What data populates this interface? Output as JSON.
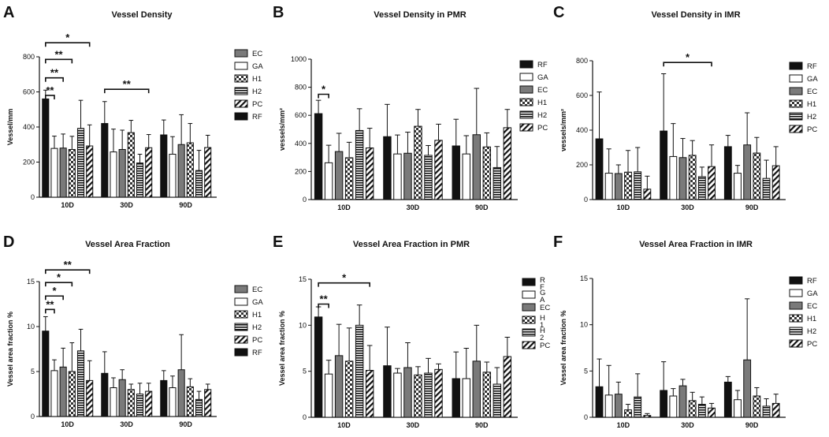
{
  "colors": {
    "ink": "#111111",
    "gray": "#7a7a7a",
    "white": "#ffffff"
  },
  "chart_data": [
    {
      "letter": "A",
      "title": "Vessel Density",
      "type": "bar",
      "ylabel": "Vessel/mm",
      "ylim": [
        0,
        800
      ],
      "yticks": [
        0,
        200,
        400,
        600,
        800
      ],
      "categories": [
        "10D",
        "30D",
        "90D"
      ],
      "series": [
        {
          "name": "RF",
          "fill": "black",
          "values": [
            560,
            420,
            355
          ],
          "errors": [
            50,
            125,
            85
          ]
        },
        {
          "name": "GA",
          "fill": "white",
          "values": [
            278,
            258,
            245
          ],
          "errors": [
            70,
            130,
            100
          ]
        },
        {
          "name": "EC",
          "fill": "gray",
          "values": [
            280,
            272,
            300
          ],
          "errors": [
            80,
            110,
            170
          ]
        },
        {
          "name": "H1",
          "fill": "check",
          "values": [
            272,
            368,
            310
          ],
          "errors": [
            75,
            70,
            110
          ]
        },
        {
          "name": "H2",
          "fill": "hstripe",
          "values": [
            392,
            195,
            152
          ],
          "errors": [
            160,
            50,
            115
          ]
        },
        {
          "name": "PC",
          "fill": "diag",
          "values": [
            292,
            282,
            283
          ],
          "errors": [
            120,
            75,
            70
          ]
        }
      ],
      "legend": [
        {
          "label": "EC",
          "fill": "gray"
        },
        {
          "label": "GA",
          "fill": "white"
        },
        {
          "label": "H1",
          "fill": "check"
        },
        {
          "label": "H2",
          "fill": "hstripe"
        },
        {
          "label": "PC",
          "fill": "diag"
        },
        {
          "label": "RF",
          "fill": "black"
        }
      ],
      "sig": [
        {
          "cat": 0,
          "a": 0,
          "b": 5,
          "level": 880,
          "label": "*"
        },
        {
          "cat": 0,
          "a": 0,
          "b": 3,
          "level": 785,
          "label": "**"
        },
        {
          "cat": 0,
          "a": 0,
          "b": 2,
          "level": 680,
          "label": "**"
        },
        {
          "cat": 0,
          "a": 0,
          "b": 1,
          "level": 580,
          "label": "**"
        },
        {
          "cat": 1,
          "a": 0,
          "b": 5,
          "level": 615,
          "label": "**"
        }
      ]
    },
    {
      "letter": "B",
      "title": "Vessel Density in PMR",
      "type": "bar",
      "ylabel": "vessels/mm²",
      "ylim": [
        0,
        1000
      ],
      "yticks": [
        0,
        200,
        400,
        600,
        800,
        1000
      ],
      "categories": [
        "10D",
        "30D",
        "90D"
      ],
      "series": [
        {
          "name": "RF",
          "fill": "black",
          "values": [
            612,
            448,
            382
          ],
          "errors": [
            95,
            230,
            190
          ]
        },
        {
          "name": "GA",
          "fill": "white",
          "values": [
            262,
            325,
            325
          ],
          "errors": [
            125,
            135,
            130
          ]
        },
        {
          "name": "EC",
          "fill": "gray",
          "values": [
            342,
            330,
            462
          ],
          "errors": [
            130,
            150,
            330
          ]
        },
        {
          "name": "H1",
          "fill": "check",
          "values": [
            298,
            522,
            375
          ],
          "errors": [
            110,
            120,
            100
          ]
        },
        {
          "name": "H2",
          "fill": "hstripe",
          "values": [
            492,
            315,
            228
          ],
          "errors": [
            155,
            70,
            150
          ]
        },
        {
          "name": "PC",
          "fill": "diag",
          "values": [
            368,
            422,
            512
          ],
          "errors": [
            140,
            115,
            130
          ]
        }
      ],
      "legend": [
        {
          "label": "RF",
          "fill": "black"
        },
        {
          "label": "GA",
          "fill": "white"
        },
        {
          "label": "EC",
          "fill": "gray"
        },
        {
          "label": "H1",
          "fill": "check"
        },
        {
          "label": "H2",
          "fill": "hstripe"
        },
        {
          "label": "PC",
          "fill": "diag"
        }
      ],
      "sig": [
        {
          "cat": 0,
          "a": 0,
          "b": 1,
          "level": 750,
          "label": "*"
        }
      ]
    },
    {
      "letter": "C",
      "title": "Vessel Density in IMR",
      "type": "bar",
      "ylabel": "vessels/mm²",
      "ylim": [
        0,
        800
      ],
      "yticks": [
        0,
        200,
        400,
        600,
        800
      ],
      "categories": [
        "10D",
        "30D",
        "90D"
      ],
      "series": [
        {
          "name": "RF",
          "fill": "black",
          "values": [
            350,
            395,
            305
          ],
          "errors": [
            270,
            330,
            65
          ]
        },
        {
          "name": "GA",
          "fill": "white",
          "values": [
            152,
            248,
            152
          ],
          "errors": [
            140,
            190,
            45
          ]
        },
        {
          "name": "EC",
          "fill": "gray",
          "values": [
            150,
            242,
            315
          ],
          "errors": [
            50,
            110,
            185
          ]
        },
        {
          "name": "H1",
          "fill": "check",
          "values": [
            158,
            255,
            268
          ],
          "errors": [
            125,
            85,
            90
          ]
        },
        {
          "name": "H2",
          "fill": "hstripe",
          "values": [
            160,
            132,
            122
          ],
          "errors": [
            140,
            55,
            105
          ]
        },
        {
          "name": "PC",
          "fill": "diag",
          "values": [
            60,
            190,
            195
          ],
          "errors": [
            75,
            125,
            110
          ]
        }
      ],
      "legend": [
        {
          "label": "RF",
          "fill": "black"
        },
        {
          "label": "GA",
          "fill": "white"
        },
        {
          "label": "EC",
          "fill": "gray"
        },
        {
          "label": "H1",
          "fill": "check"
        },
        {
          "label": "H2",
          "fill": "hstripe"
        },
        {
          "label": "PC",
          "fill": "diag"
        }
      ],
      "sig": [
        {
          "cat": 1,
          "a": 0,
          "b": 5,
          "level": 790,
          "label": "*"
        }
      ]
    },
    {
      "letter": "D",
      "title": "Vessel Area Fraction",
      "type": "bar",
      "ylabel": "Vessel area fraction %",
      "ylim": [
        0,
        15
      ],
      "yticks": [
        0,
        5,
        10,
        15
      ],
      "categories": [
        "10D",
        "30D",
        "90D"
      ],
      "series": [
        {
          "name": "RF",
          "fill": "black",
          "values": [
            9.5,
            4.8,
            4.0
          ],
          "errors": [
            1.6,
            2.4,
            1.1
          ]
        },
        {
          "name": "GA",
          "fill": "white",
          "values": [
            5.1,
            3.2,
            3.2
          ],
          "errors": [
            1.2,
            1.1,
            1.3
          ]
        },
        {
          "name": "EC",
          "fill": "gray",
          "values": [
            5.5,
            4.1,
            5.2
          ],
          "errors": [
            2.1,
            1.1,
            3.9
          ]
        },
        {
          "name": "H1",
          "fill": "check",
          "values": [
            5.0,
            3.0,
            3.3
          ],
          "errors": [
            3.2,
            0.6,
            0.9
          ]
        },
        {
          "name": "H2",
          "fill": "hstripe",
          "values": [
            7.3,
            2.5,
            1.9
          ],
          "errors": [
            2.4,
            1.2,
            0.9
          ]
        },
        {
          "name": "PC",
          "fill": "diag",
          "values": [
            4.0,
            2.8,
            3.0
          ],
          "errors": [
            2.2,
            0.9,
            0.6
          ]
        }
      ],
      "legend": [
        {
          "label": "EC",
          "fill": "gray"
        },
        {
          "label": "GA",
          "fill": "white"
        },
        {
          "label": "H1",
          "fill": "check"
        },
        {
          "label": "H2",
          "fill": "hstripe"
        },
        {
          "label": "PC",
          "fill": "diag"
        },
        {
          "label": "RF",
          "fill": "black"
        }
      ],
      "sig": [
        {
          "cat": 0,
          "a": 0,
          "b": 5,
          "level": 16.3,
          "label": "**"
        },
        {
          "cat": 0,
          "a": 0,
          "b": 3,
          "level": 14.9,
          "label": "*"
        },
        {
          "cat": 0,
          "a": 0,
          "b": 2,
          "level": 13.4,
          "label": "*"
        },
        {
          "cat": 0,
          "a": 0,
          "b": 1,
          "level": 11.9,
          "label": "**"
        }
      ]
    },
    {
      "letter": "E",
      "title": "Vessel Area Fraction in PMR",
      "type": "bar",
      "ylabel": "Vessel area fraction %",
      "ylim": [
        0,
        15
      ],
      "yticks": [
        0,
        5,
        10,
        15
      ],
      "categories": [
        "10D",
        "30D",
        "90D"
      ],
      "series": [
        {
          "name": "RF",
          "fill": "black",
          "values": [
            10.9,
            5.6,
            4.2
          ],
          "errors": [
            1.1,
            4.2,
            2.9
          ]
        },
        {
          "name": "GA",
          "fill": "white",
          "values": [
            4.7,
            4.8,
            4.2
          ],
          "errors": [
            1.5,
            0.5,
            3.3
          ]
        },
        {
          "name": "EC",
          "fill": "gray",
          "values": [
            6.7,
            5.4,
            6.1
          ],
          "errors": [
            3.4,
            2.7,
            3.9
          ]
        },
        {
          "name": "H1",
          "fill": "check",
          "values": [
            6.1,
            4.6,
            4.9
          ],
          "errors": [
            3.6,
            0.9,
            1.1
          ]
        },
        {
          "name": "H2",
          "fill": "hstripe",
          "values": [
            10.0,
            4.8,
            3.6
          ],
          "errors": [
            2.2,
            1.6,
            1.8
          ]
        },
        {
          "name": "PC",
          "fill": "diag",
          "values": [
            5.1,
            5.2,
            6.6
          ],
          "errors": [
            2.7,
            0.6,
            2.1
          ]
        }
      ],
      "legend": [
        {
          "label": "R\nF",
          "fill": "black"
        },
        {
          "label": "G\nA",
          "fill": "white"
        },
        {
          "label": "EC",
          "fill": "gray"
        },
        {
          "label": "H\n1",
          "fill": "check"
        },
        {
          "label": "H\n2",
          "fill": "hstripe"
        },
        {
          "label": "PC",
          "fill": "diag"
        }
      ],
      "sig": [
        {
          "cat": 0,
          "a": 0,
          "b": 5,
          "level": 14.6,
          "label": "*"
        },
        {
          "cat": 0,
          "a": 0,
          "b": 1,
          "level": 12.3,
          "label": "**"
        }
      ]
    },
    {
      "letter": "F",
      "title": "Vessel Area Fraction in IMR",
      "type": "bar",
      "ylabel": "Vessel area fraction %",
      "ylim": [
        0,
        15
      ],
      "yticks": [
        0,
        5,
        10,
        15
      ],
      "categories": [
        "10D",
        "30D",
        "90D"
      ],
      "series": [
        {
          "name": "RF",
          "fill": "black",
          "values": [
            3.3,
            2.9,
            3.8
          ],
          "errors": [
            3.0,
            3.1,
            0.6
          ]
        },
        {
          "name": "GA",
          "fill": "white",
          "values": [
            2.4,
            2.3,
            1.9
          ],
          "errors": [
            3.2,
            0.8,
            1.0
          ]
        },
        {
          "name": "EC",
          "fill": "gray",
          "values": [
            2.5,
            3.4,
            6.2
          ],
          "errors": [
            1.3,
            0.7,
            6.6
          ]
        },
        {
          "name": "H1",
          "fill": "check",
          "values": [
            0.8,
            1.8,
            2.3
          ],
          "errors": [
            0.6,
            0.9,
            0.9
          ]
        },
        {
          "name": "H2",
          "fill": "hstripe",
          "values": [
            2.2,
            1.4,
            1.2
          ],
          "errors": [
            2.5,
            0.8,
            0.8
          ]
        },
        {
          "name": "PC",
          "fill": "diag",
          "values": [
            0.2,
            1.0,
            1.5
          ],
          "errors": [
            0.2,
            0.5,
            1.0
          ]
        }
      ],
      "legend": [
        {
          "label": "RF",
          "fill": "black"
        },
        {
          "label": "GA",
          "fill": "white"
        },
        {
          "label": "EC",
          "fill": "gray"
        },
        {
          "label": "H1",
          "fill": "check"
        },
        {
          "label": "H2",
          "fill": "hstripe"
        },
        {
          "label": "PC",
          "fill": "diag"
        }
      ],
      "sig": []
    }
  ]
}
